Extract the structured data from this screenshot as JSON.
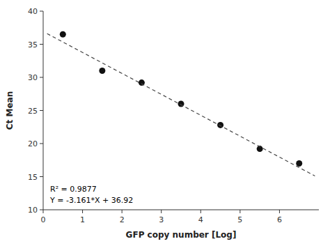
{
  "chart_data": {
    "type": "scatter",
    "xlabel": "GFP copy number [Log]",
    "ylabel": "Ct Mean",
    "xlim": [
      0,
      7
    ],
    "ylim": [
      10,
      40
    ],
    "xticks": [
      0,
      1,
      2,
      3,
      4,
      5,
      6
    ],
    "yticks": [
      10,
      15,
      20,
      25,
      30,
      35,
      40
    ],
    "series": [
      {
        "type": "scatter",
        "color": "#111111",
        "marker": "circle",
        "x": [
          0.5,
          1.5,
          2.5,
          3.5,
          4.5,
          5.5,
          6.5
        ],
        "values": [
          36.5,
          31.0,
          29.2,
          26.0,
          22.8,
          19.2,
          17.0
        ]
      },
      {
        "type": "line",
        "color": "#444444",
        "line_style": "dashed",
        "x": [
          0.1,
          6.9
        ],
        "values": [
          36.6039,
          15.1091
        ]
      }
    ],
    "annotations": [
      "R² = 0.9877",
      "Y = -3.161*X + 36.92"
    ]
  }
}
